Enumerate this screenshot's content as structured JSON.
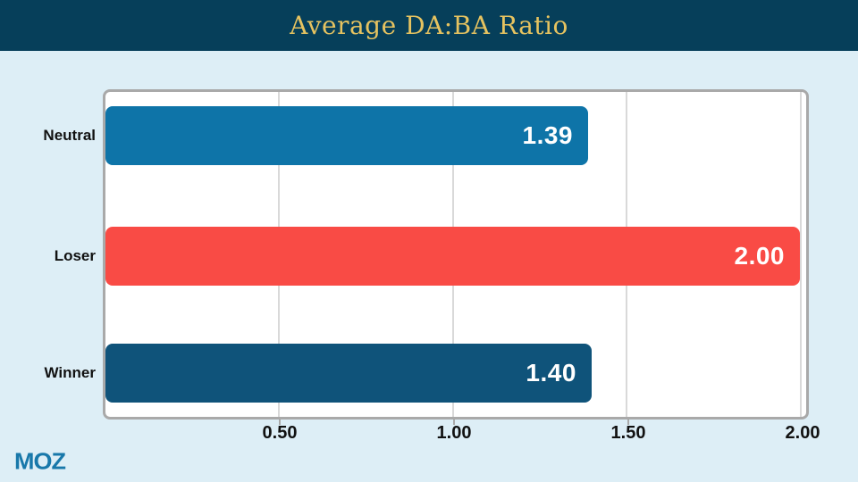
{
  "header": {
    "title": "Average DA:BA Ratio",
    "background_color": "#063f5a",
    "title_color": "#e6c360"
  },
  "chart_data": {
    "type": "bar",
    "orientation": "horizontal",
    "title": "Average DA:BA Ratio",
    "categories": [
      "Neutral",
      "Loser",
      "Winner"
    ],
    "values": [
      1.39,
      2.0,
      1.4
    ],
    "value_labels": [
      "1.39",
      "2.00",
      "1.40"
    ],
    "bar_colors": [
      "#0e74a8",
      "#f94b45",
      "#0f537a"
    ],
    "value_label_color": "#ffffff",
    "xlim": [
      0,
      2.0
    ],
    "x_ticks": [
      {
        "value": 0.5,
        "label": "0.50"
      },
      {
        "value": 1.0,
        "label": "1.00"
      },
      {
        "value": 1.5,
        "label": "1.50"
      },
      {
        "value": 2.0,
        "label": "2.00"
      }
    ],
    "grid": "vertical gridlines at each tick",
    "legend": "none",
    "plot_background": "#ffffff",
    "panel_border_color": "#a9a9a9"
  },
  "footer": {
    "logo_text": "MOZ",
    "logo_color": "#1878aa"
  },
  "page_background": "#ddeef6"
}
